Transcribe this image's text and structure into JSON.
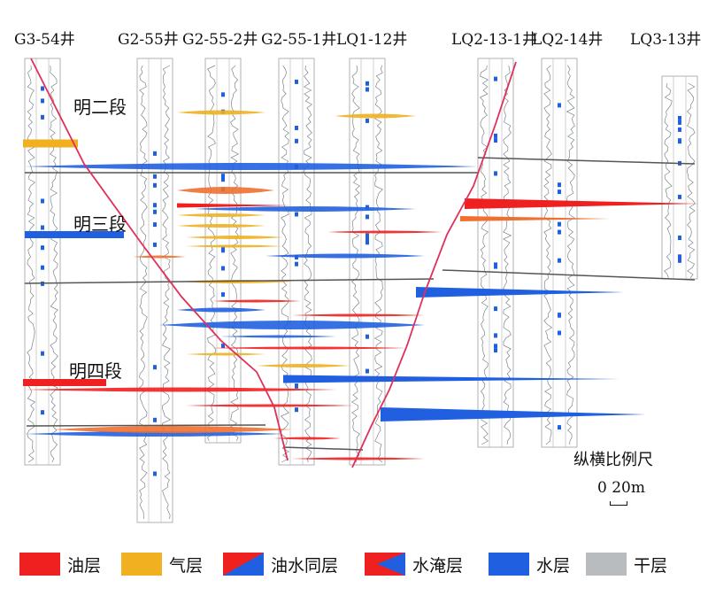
{
  "wells": [
    "G3-54井",
    "G2-55井",
    "G2-55-2井",
    "G2-55-1井",
    "LQ1-12井",
    "LQ2-13-1井",
    "LQ2-14井",
    "LQ3-13井"
  ],
  "zones": [
    "明二段",
    "明三段",
    "明四段"
  ],
  "scale": {
    "title": "纵横比例尺",
    "text": "0 20m"
  },
  "legend": [
    {
      "label": "油层",
      "color": "#ef2020",
      "icon": "solid-swatch"
    },
    {
      "label": "气层",
      "color": "#f0b020",
      "icon": "solid-swatch"
    },
    {
      "label": "油水同层",
      "color": "#ef2020",
      "color2": "#2060e0",
      "icon": "diagonal-split-swatch"
    },
    {
      "label": "水淹层",
      "color": "#ef2020",
      "color2": "#2060e0",
      "icon": "wedge-swatch"
    },
    {
      "label": "水层",
      "color": "#2060e0",
      "icon": "solid-swatch"
    },
    {
      "label": "干层",
      "color": "#b8bcbe",
      "icon": "solid-swatch"
    }
  ],
  "colors": {
    "oil": "#ef2020",
    "gas": "#f0b020",
    "water": "#2060e0",
    "orange": "#f07030",
    "dry": "#b8bcbe",
    "fault": "#e0305a",
    "marker": "#555555"
  }
}
